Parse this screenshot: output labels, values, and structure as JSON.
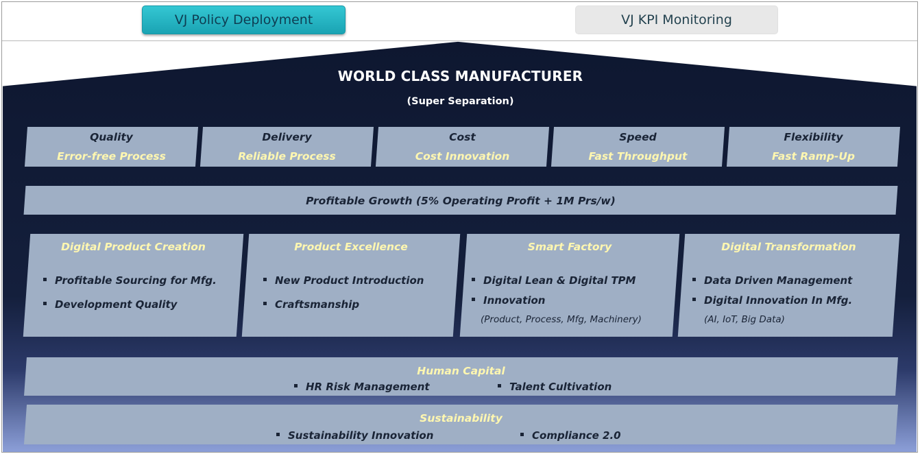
{
  "tabs": {
    "policy": "VJ Policy Deployment",
    "kpi": "VJ KPI Monitoring"
  },
  "house": {
    "title": "WORLD CLASS MANUFACTURER",
    "subtitle": "(Super Separation)",
    "colors": {
      "roof_top": "#0e1730",
      "roof_mid": "#141f3c",
      "roof_bottom": "#8c9fd8",
      "box": "#9fafc5",
      "accent_text": "#fff7b0"
    }
  },
  "dimensions": [
    {
      "name": "Quality",
      "sub": "Error-free Process"
    },
    {
      "name": "Delivery",
      "sub": "Reliable Process"
    },
    {
      "name": "Cost",
      "sub": "Cost Innovation"
    },
    {
      "name": "Speed",
      "sub": "Fast Throughput"
    },
    {
      "name": "Flexibility",
      "sub": "Fast Ramp-Up"
    }
  ],
  "goal": "Profitable Growth (5% Operating Profit + 1M Prs/w)",
  "pillars": [
    {
      "title": "Digital Product Creation",
      "items": [
        "Profitable Sourcing for Mfg.",
        "Development Quality"
      ],
      "note": ""
    },
    {
      "title": "Product Excellence",
      "items": [
        "New Product Introduction",
        "Craftsmanship"
      ],
      "note": ""
    },
    {
      "title": "Smart Factory",
      "items": [
        "Digital Lean & Digital TPM",
        "Innovation"
      ],
      "note": "(Product, Process, Mfg, Machinery)"
    },
    {
      "title": "Digital Transformation",
      "items": [
        "Data Driven Management",
        "Digital Innovation In Mfg."
      ],
      "note": "(AI, IoT, Big Data)"
    }
  ],
  "human_capital": {
    "title": "Human Capital",
    "items": [
      "HR Risk Management",
      "Talent Cultivation"
    ]
  },
  "sustainability": {
    "title": "Sustainability",
    "items": [
      "Sustainability Innovation",
      "Compliance 2.0"
    ]
  }
}
